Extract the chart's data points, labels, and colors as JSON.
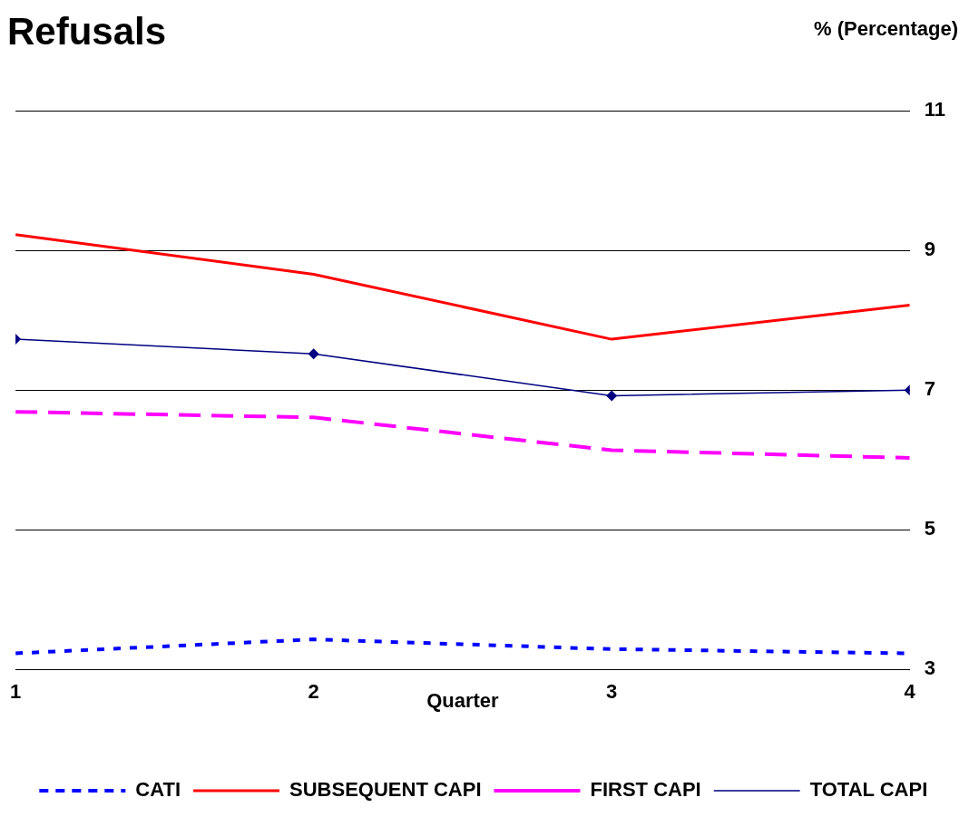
{
  "chart_data": {
    "type": "line",
    "title": "Refusals",
    "xlabel": "Quarter",
    "ylabel": "% (Percentage)",
    "x": [
      1,
      2,
      3,
      4
    ],
    "xlim": [
      1,
      4
    ],
    "xticks": [
      1,
      2,
      3,
      4
    ],
    "ylim": [
      3,
      11
    ],
    "yticks": [
      3,
      5,
      7,
      9,
      11
    ],
    "grid": "y",
    "legend": "bottom",
    "series": [
      {
        "name": "CATI",
        "color": "#0000ff",
        "line_style": "dotted",
        "marker": "none",
        "values": [
          3.23,
          3.43,
          3.29,
          3.23
        ]
      },
      {
        "name": "SUBSEQUENT CAPI",
        "color": "#ff0000",
        "line_style": "solid",
        "marker": "none",
        "values": [
          9.23,
          8.66,
          7.73,
          8.22
        ]
      },
      {
        "name": "FIRST CAPI",
        "color": "#ff00ff",
        "line_style": "dashed",
        "marker": "none",
        "values": [
          6.69,
          6.61,
          6.14,
          6.03
        ]
      },
      {
        "name": "TOTAL CAPI",
        "color": "#000080",
        "line_style": "solid",
        "marker": "diamond",
        "values": [
          7.73,
          7.52,
          6.92,
          7.0
        ]
      }
    ]
  }
}
